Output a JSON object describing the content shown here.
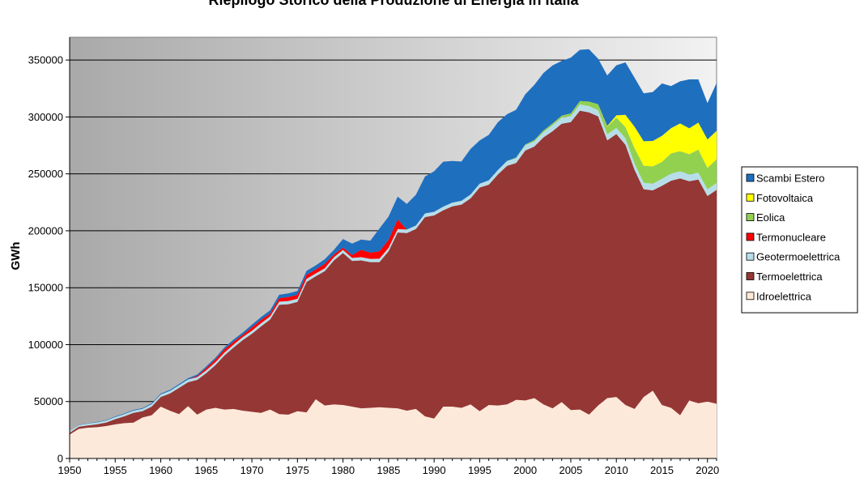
{
  "chart_data": {
    "type": "area",
    "stacked": true,
    "title": "Riepilogo Storico della Produzione di Energia in Italia",
    "ylabel": "GWh",
    "xlabel": "",
    "xlim": [
      1950,
      2021
    ],
    "ylim": [
      0,
      370000
    ],
    "x_ticks": [
      1950,
      1955,
      1960,
      1965,
      1970,
      1975,
      1980,
      1985,
      1990,
      1995,
      2000,
      2005,
      2010,
      2015,
      2020
    ],
    "y_ticks": [
      0,
      50000,
      100000,
      150000,
      200000,
      250000,
      300000,
      350000
    ],
    "grid": true,
    "legend_position": "right",
    "x": [
      1950,
      1951,
      1952,
      1953,
      1954,
      1955,
      1956,
      1957,
      1958,
      1959,
      1960,
      1961,
      1962,
      1963,
      1964,
      1965,
      1966,
      1967,
      1968,
      1969,
      1970,
      1971,
      1972,
      1973,
      1974,
      1975,
      1976,
      1977,
      1978,
      1979,
      1980,
      1981,
      1982,
      1983,
      1984,
      1985,
      1986,
      1987,
      1988,
      1989,
      1990,
      1991,
      1992,
      1993,
      1994,
      1995,
      1996,
      1997,
      1998,
      1999,
      2000,
      2001,
      2002,
      2003,
      2004,
      2005,
      2006,
      2007,
      2008,
      2009,
      2010,
      2011,
      2012,
      2013,
      2014,
      2015,
      2016,
      2017,
      2018,
      2019,
      2020,
      2021
    ],
    "series": [
      {
        "name": "Idroelettrica",
        "color": "#fde9d9",
        "values": [
          21000,
          26000,
          27000,
          27500,
          28500,
          30000,
          31000,
          31500,
          36000,
          38000,
          45500,
          42000,
          39000,
          46000,
          38500,
          43000,
          44500,
          43000,
          43500,
          42000,
          41000,
          40000,
          43000,
          39000,
          38500,
          41500,
          40500,
          52000,
          46500,
          47500,
          47000,
          45500,
          44000,
          44500,
          45000,
          44500,
          44000,
          42000,
          43500,
          37000,
          35000,
          45500,
          45500,
          44500,
          47500,
          41500,
          47000,
          46500,
          47500,
          51500,
          51000,
          53000,
          47500,
          44000,
          49500,
          42500,
          43000,
          38500,
          46500,
          53000,
          54000,
          47000,
          43500,
          54000,
          59500,
          47000,
          44500,
          38000,
          51000,
          48500,
          50000,
          48000
        ]
      },
      {
        "name": "Termoelettrica",
        "color": "#953735",
        "values": [
          1500,
          1800,
          2000,
          2500,
          3000,
          4500,
          6000,
          8500,
          5500,
          7500,
          8500,
          15000,
          23000,
          21000,
          30500,
          32000,
          37500,
          47500,
          54000,
          62000,
          68500,
          76000,
          79000,
          96000,
          97000,
          96000,
          114500,
          108000,
          118000,
          126500,
          133500,
          128000,
          130000,
          128000,
          127500,
          137500,
          154500,
          156000,
          158000,
          175000,
          178500,
          172500,
          176000,
          178500,
          181000,
          196500,
          193500,
          203000,
          209500,
          208000,
          219500,
          221000,
          234500,
          243500,
          244500,
          253000,
          262500,
          265500,
          254000,
          226500,
          231000,
          228500,
          210000,
          182500,
          176000,
          192500,
          199500,
          208000,
          192500,
          196500,
          180500,
          188000
        ]
      },
      {
        "name": "Geotermoelettrica",
        "color": "#b7dee8",
        "values": [
          1500,
          1500,
          1600,
          1700,
          1800,
          1900,
          2000,
          2000,
          2100,
          2200,
          2200,
          2300,
          2300,
          2400,
          2400,
          2500,
          2500,
          2500,
          2600,
          2600,
          2700,
          2700,
          2800,
          2800,
          2800,
          2800,
          2800,
          2500,
          2500,
          2700,
          2700,
          2700,
          2800,
          2800,
          3000,
          3000,
          3000,
          3100,
          3100,
          3200,
          3200,
          3200,
          3300,
          3400,
          3400,
          3400,
          3800,
          3900,
          4200,
          4400,
          4700,
          4500,
          4700,
          5300,
          5400,
          5300,
          5500,
          5500,
          5500,
          5300,
          5400,
          5700,
          5600,
          5700,
          5900,
          6200,
          6300,
          6200,
          6100,
          6100,
          6000,
          5900
        ]
      },
      {
        "name": "Termonucleare",
        "color": "#ff0000",
        "values": [
          0,
          0,
          0,
          0,
          0,
          0,
          0,
          0,
          0,
          0,
          0,
          0,
          0,
          0,
          1000,
          2000,
          2500,
          3000,
          2500,
          2000,
          3000,
          3000,
          2500,
          3000,
          3500,
          3500,
          3500,
          3500,
          4000,
          2500,
          2000,
          2500,
          6500,
          5500,
          6500,
          7000,
          8500,
          0,
          0,
          0,
          0,
          0,
          0,
          0,
          0,
          0,
          0,
          0,
          0,
          0,
          0,
          0,
          0,
          0,
          0,
          0,
          0,
          0,
          0,
          0,
          0,
          0,
          0,
          0,
          0,
          0,
          0,
          0,
          0,
          0,
          0,
          0
        ]
      },
      {
        "name": "Eolica",
        "color": "#92d050",
        "values": [
          0,
          0,
          0,
          0,
          0,
          0,
          0,
          0,
          0,
          0,
          0,
          0,
          0,
          0,
          0,
          0,
          0,
          0,
          0,
          0,
          0,
          0,
          0,
          0,
          0,
          0,
          0,
          0,
          0,
          0,
          0,
          0,
          0,
          0,
          0,
          0,
          0,
          0,
          0,
          0,
          0,
          0,
          0,
          0,
          0,
          0,
          0,
          0,
          200,
          400,
          600,
          1200,
          1400,
          1500,
          1800,
          2300,
          3000,
          4000,
          4900,
          6500,
          9100,
          9900,
          13400,
          14900,
          15200,
          14800,
          17700,
          17700,
          17700,
          20200,
          18800,
          20900
        ]
      },
      {
        "name": "Fotovoltaica",
        "color": "#ffff00",
        "values": [
          0,
          0,
          0,
          0,
          0,
          0,
          0,
          0,
          0,
          0,
          0,
          0,
          0,
          0,
          0,
          0,
          0,
          0,
          0,
          0,
          0,
          0,
          0,
          0,
          0,
          0,
          0,
          0,
          0,
          0,
          0,
          0,
          0,
          0,
          0,
          0,
          0,
          0,
          0,
          0,
          0,
          0,
          0,
          0,
          0,
          0,
          0,
          0,
          0,
          0,
          0,
          0,
          0,
          0,
          0,
          0,
          0,
          0,
          200,
          700,
          1900,
          10800,
          18900,
          21600,
          22300,
          22900,
          22100,
          24400,
          22700,
          23700,
          24900,
          25000
        ]
      },
      {
        "name": "Scambi Estero",
        "color": "#1f6fbf",
        "values": [
          0,
          100,
          200,
          300,
          400,
          500,
          500,
          600,
          600,
          700,
          800,
          900,
          1000,
          1100,
          1300,
          1400,
          1500,
          1700,
          1900,
          2000,
          2300,
          2500,
          2800,
          3000,
          3200,
          3300,
          3500,
          3500,
          4000,
          4000,
          7500,
          10000,
          9000,
          10500,
          20000,
          20500,
          20000,
          22500,
          27000,
          32500,
          35500,
          39500,
          36500,
          34500,
          40000,
          38000,
          40000,
          42000,
          41000,
          42000,
          44000,
          48500,
          50500,
          51000,
          48000,
          49000,
          45000,
          46000,
          40000,
          44500,
          44000,
          46000,
          43000,
          42000,
          43000,
          46000,
          37000,
          37000,
          43000,
          38000,
          32000,
          42000
        ]
      }
    ]
  }
}
